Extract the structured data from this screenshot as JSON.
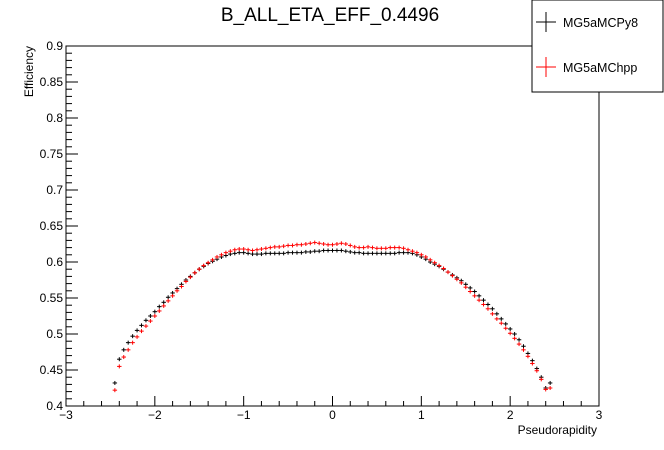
{
  "chart_data": {
    "type": "scatter",
    "title": "B_ALL_ETA_EFF_0.4496",
    "xlabel": "Pseudorapidity",
    "ylabel": "Efficiency",
    "xlim": [
      -3,
      3
    ],
    "ylim": [
      0.4,
      0.9
    ],
    "xticks": [
      -3,
      -2,
      -1,
      0,
      1,
      2,
      3
    ],
    "xtick_labels": [
      "−3",
      "−2",
      "−1",
      "0",
      "1",
      "2",
      "3"
    ],
    "yticks": [
      0.4,
      0.45,
      0.5,
      0.55,
      0.6,
      0.65,
      0.7,
      0.75,
      0.8,
      0.85,
      0.9
    ],
    "ytick_labels": [
      "0.4",
      "0.45",
      "0.5",
      "0.55",
      "0.6",
      "0.65",
      "0.7",
      "0.75",
      "0.8",
      "0.85",
      "0.9"
    ],
    "grid": false,
    "legend_position": "top-right",
    "x": [
      -2.45,
      -2.4,
      -2.35,
      -2.3,
      -2.25,
      -2.2,
      -2.15,
      -2.1,
      -2.05,
      -2.0,
      -1.95,
      -1.9,
      -1.85,
      -1.8,
      -1.75,
      -1.7,
      -1.65,
      -1.6,
      -1.55,
      -1.5,
      -1.45,
      -1.4,
      -1.35,
      -1.3,
      -1.25,
      -1.2,
      -1.15,
      -1.1,
      -1.05,
      -1.0,
      -0.95,
      -0.9,
      -0.85,
      -0.8,
      -0.75,
      -0.7,
      -0.65,
      -0.6,
      -0.55,
      -0.5,
      -0.45,
      -0.4,
      -0.35,
      -0.3,
      -0.25,
      -0.2,
      -0.15,
      -0.1,
      -0.05,
      0.0,
      0.05,
      0.1,
      0.15,
      0.2,
      0.25,
      0.3,
      0.35,
      0.4,
      0.45,
      0.5,
      0.55,
      0.6,
      0.65,
      0.7,
      0.75,
      0.8,
      0.85,
      0.9,
      0.95,
      1.0,
      1.05,
      1.1,
      1.15,
      1.2,
      1.25,
      1.3,
      1.35,
      1.4,
      1.45,
      1.5,
      1.55,
      1.6,
      1.65,
      1.7,
      1.75,
      1.8,
      1.85,
      1.9,
      1.95,
      2.0,
      2.05,
      2.1,
      2.15,
      2.2,
      2.25,
      2.3,
      2.35,
      2.4,
      2.45
    ],
    "series": [
      {
        "name": "MG5aMCPy8",
        "color": "#000000",
        "values": [
          0.432,
          0.465,
          0.478,
          0.488,
          0.497,
          0.505,
          0.512,
          0.519,
          0.525,
          0.531,
          0.538,
          0.544,
          0.551,
          0.557,
          0.563,
          0.569,
          0.575,
          0.58,
          0.585,
          0.59,
          0.594,
          0.598,
          0.601,
          0.604,
          0.607,
          0.609,
          0.611,
          0.612,
          0.613,
          0.613,
          0.612,
          0.611,
          0.611,
          0.611,
          0.612,
          0.612,
          0.612,
          0.612,
          0.612,
          0.613,
          0.613,
          0.613,
          0.613,
          0.614,
          0.614,
          0.615,
          0.615,
          0.616,
          0.616,
          0.616,
          0.616,
          0.616,
          0.615,
          0.614,
          0.613,
          0.613,
          0.612,
          0.612,
          0.612,
          0.612,
          0.612,
          0.612,
          0.612,
          0.612,
          0.613,
          0.613,
          0.613,
          0.612,
          0.61,
          0.607,
          0.604,
          0.6,
          0.597,
          0.594,
          0.59,
          0.586,
          0.582,
          0.578,
          0.574,
          0.569,
          0.564,
          0.559,
          0.553,
          0.547,
          0.541,
          0.535,
          0.528,
          0.521,
          0.514,
          0.507,
          0.5,
          0.492,
          0.483,
          0.473,
          0.463,
          0.452,
          0.44,
          0.425,
          0.432
        ]
      },
      {
        "name": "MG5aMChpp",
        "color": "#ff0000",
        "values": [
          0.422,
          0.455,
          0.468,
          0.478,
          0.488,
          0.496,
          0.504,
          0.511,
          0.518,
          0.525,
          0.532,
          0.539,
          0.546,
          0.553,
          0.56,
          0.566,
          0.573,
          0.579,
          0.585,
          0.59,
          0.595,
          0.599,
          0.603,
          0.607,
          0.61,
          0.613,
          0.615,
          0.617,
          0.618,
          0.618,
          0.617,
          0.616,
          0.617,
          0.618,
          0.619,
          0.62,
          0.621,
          0.621,
          0.622,
          0.623,
          0.623,
          0.624,
          0.624,
          0.625,
          0.626,
          0.627,
          0.626,
          0.625,
          0.624,
          0.624,
          0.625,
          0.626,
          0.625,
          0.623,
          0.621,
          0.62,
          0.62,
          0.621,
          0.62,
          0.619,
          0.619,
          0.619,
          0.62,
          0.62,
          0.62,
          0.619,
          0.617,
          0.615,
          0.613,
          0.61,
          0.607,
          0.603,
          0.599,
          0.595,
          0.591,
          0.586,
          0.581,
          0.576,
          0.571,
          0.565,
          0.559,
          0.553,
          0.547,
          0.541,
          0.535,
          0.528,
          0.521,
          0.515,
          0.508,
          0.501,
          0.494,
          0.486,
          0.478,
          0.469,
          0.459,
          0.449,
          0.437,
          0.423,
          0.425
        ]
      }
    ]
  }
}
